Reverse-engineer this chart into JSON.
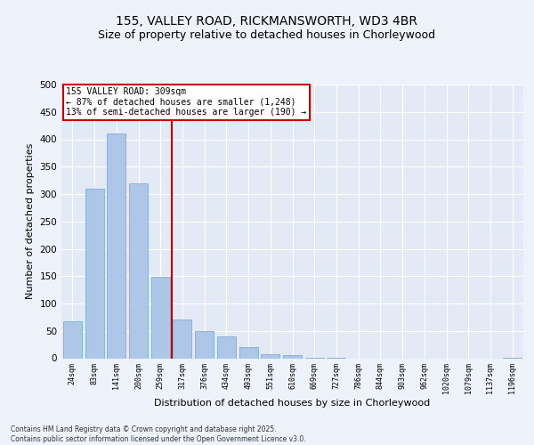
{
  "title1": "155, VALLEY ROAD, RICKMANSWORTH, WD3 4BR",
  "title2": "Size of property relative to detached houses in Chorleywood",
  "xlabel": "Distribution of detached houses by size in Chorleywood",
  "ylabel": "Number of detached properties",
  "categories": [
    "24sqm",
    "83sqm",
    "141sqm",
    "200sqm",
    "259sqm",
    "317sqm",
    "376sqm",
    "434sqm",
    "493sqm",
    "551sqm",
    "610sqm",
    "669sqm",
    "727sqm",
    "786sqm",
    "844sqm",
    "903sqm",
    "962sqm",
    "1020sqm",
    "1079sqm",
    "1137sqm",
    "1196sqm"
  ],
  "values": [
    68,
    310,
    410,
    320,
    148,
    70,
    50,
    40,
    20,
    8,
    6,
    1,
    1,
    0,
    0,
    0,
    0,
    0,
    0,
    0,
    1
  ],
  "bar_color": "#aec6e8",
  "bar_edge_color": "#7aafd4",
  "vline_color": "#cc0000",
  "vline_x_index": 5,
  "annotation_text": "155 VALLEY ROAD: 309sqm\n← 87% of detached houses are smaller (1,248)\n13% of semi-detached houses are larger (190) →",
  "annotation_box_color": "#ffffff",
  "annotation_box_edge_color": "#cc0000",
  "ylim": [
    0,
    500
  ],
  "yticks": [
    0,
    50,
    100,
    150,
    200,
    250,
    300,
    350,
    400,
    450,
    500
  ],
  "footer_text": "Contains HM Land Registry data © Crown copyright and database right 2025.\nContains public sector information licensed under the Open Government Licence v3.0.",
  "title1_fontsize": 10,
  "title2_fontsize": 9,
  "xlabel_fontsize": 8,
  "ylabel_fontsize": 8,
  "bg_color": "#eef2fa",
  "plot_bg_color": "#e4eaf5"
}
